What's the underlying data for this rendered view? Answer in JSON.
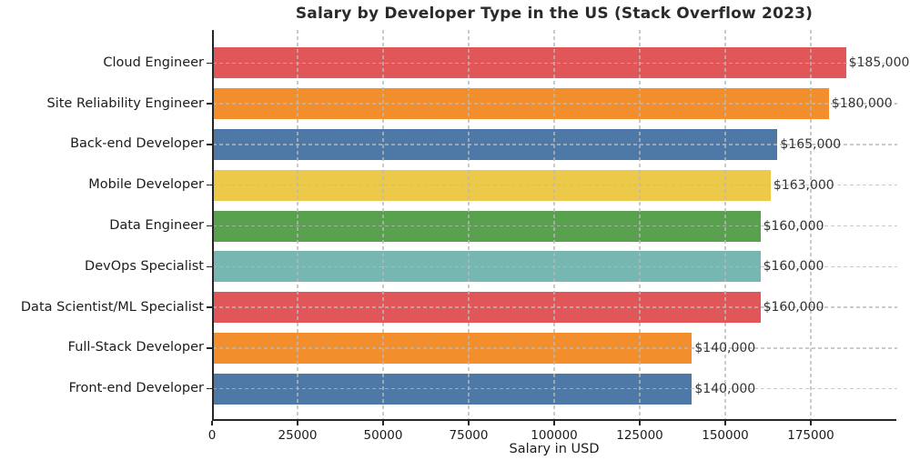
{
  "chart_data": {
    "type": "bar",
    "orientation": "horizontal",
    "title": "Salary by Developer Type in the US (Stack Overflow 2023)",
    "xlabel": "Salary in USD",
    "categories": [
      "Cloud Engineer",
      "Site Reliability Engineer",
      "Back-end Developer",
      "Mobile Developer",
      "Data Engineer",
      "DevOps Specialist",
      "Data Scientist/ML Specialist",
      "Full-Stack Developer",
      "Front-end Developer"
    ],
    "values": [
      185000,
      180000,
      165000,
      163000,
      160000,
      160000,
      160000,
      140000,
      140000
    ],
    "value_labels": [
      "$185,000",
      "$180,000",
      "$165,000",
      "$163,000",
      "$160,000",
      "$160,000",
      "$160,000",
      "$140,000",
      "$140,000"
    ],
    "bar_colors": [
      "#e15759",
      "#f28e2b",
      "#4e79a7",
      "#edc949",
      "#59a14f",
      "#76b7b2",
      "#e15759",
      "#f28e2b",
      "#4e79a7"
    ],
    "xticks": [
      0,
      25000,
      50000,
      75000,
      100000,
      125000,
      150000,
      175000
    ],
    "xtick_labels": [
      "0",
      "25000",
      "50000",
      "75000",
      "100000",
      "125000",
      "150000",
      "175000"
    ],
    "xlim": [
      0,
      200000
    ],
    "grid": "dashed",
    "grid_color": "#bdbdbd",
    "axis_color": "#262626",
    "background": "#ffffff",
    "legend": "none"
  }
}
